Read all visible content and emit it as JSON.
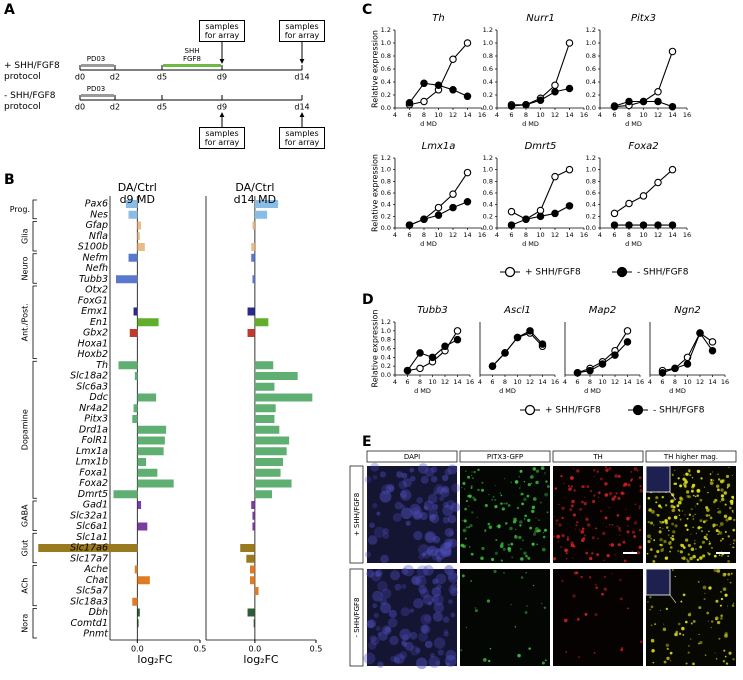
{
  "panel_labels": [
    "A",
    "B",
    "C",
    "D",
    "E"
  ],
  "panel_a": {
    "protocols": [
      {
        "label": "+ SHH/FGF8 protocol",
        "days": [
          "d0",
          "d2",
          "d5",
          "d9",
          "d14"
        ],
        "treatments": [
          {
            "label": "PD03",
            "color": "#9a9a9a"
          },
          {
            "label": "SHH FGF8",
            "color": "#6dbb45"
          }
        ],
        "samples": [
          "samples for array",
          "samples for array"
        ]
      },
      {
        "label": "- SHH/FGF8 protocol",
        "days": [
          "d0",
          "d2",
          "d5",
          "d9",
          "d14"
        ],
        "treatments": [
          {
            "label": "PD03",
            "color": "#9a9a9a"
          }
        ],
        "samples": [
          "samples for array",
          "samples for array"
        ]
      }
    ]
  },
  "chart_data": [
    {
      "type": "barh",
      "groups": [
        {
          "label": "Prog.",
          "categories": [
            "Pax6",
            "Nes"
          ],
          "color": "#89bde6"
        },
        {
          "label": "Glia",
          "categories": [
            "Gfap",
            "Nfla",
            "S100b"
          ],
          "color": "#e8bd84"
        },
        {
          "label": "Neuro",
          "categories": [
            "Nefm",
            "Nefh",
            "Tubb3"
          ],
          "color": "#5b78cf"
        },
        {
          "label": "Ant./Post.",
          "categories": [
            "Otx2",
            "FoxG1",
            "Emx1",
            "En1",
            "Gbx2",
            "Hoxa1",
            "Hoxb2"
          ],
          "colors": [
            "#8c8cd0",
            "#8c8cd0",
            "#2a2a8a",
            "#5fae2e",
            "#c0392b",
            "#c0392b",
            "#c0392b"
          ]
        },
        {
          "label": "Dopamine",
          "categories": [
            "Th",
            "Slc18a2",
            "Slc6a3",
            "Ddc",
            "Nr4a2",
            "Pitx3",
            "Drd1a",
            "FolR1",
            "Lmx1a",
            "Lmx1b",
            "Foxa1",
            "Foxa2",
            "Dmrt5"
          ],
          "color": "#5fae72"
        },
        {
          "label": "GABA",
          "categories": [
            "Gad1",
            "Slc32a1",
            "Slc6a1"
          ],
          "color": "#7a3d9e"
        },
        {
          "label": "Glut",
          "categories": [
            "Slc1a1",
            "Slc17a6",
            "Slc17a7"
          ],
          "color": "#9a7a1e"
        },
        {
          "label": "ACh",
          "categories": [
            "Ache",
            "Chat",
            "Slc5a7",
            "Slc18a3"
          ],
          "color": "#e07b22"
        },
        {
          "label": "Nora",
          "categories": [
            "Dbh",
            "Comtd1",
            "Pnmt"
          ],
          "color": "#2f5c34"
        }
      ],
      "xlabel": "log₂FC",
      "series": [
        {
          "name": "DA/Ctrl d9 MD",
          "xlim": [
            -0.8,
            0.5
          ],
          "xticks": [
            {
              "value": 0,
              "label": "0.0"
            },
            0.5
          ],
          "values": [
            -0.09,
            -0.07,
            0.03,
            0.02,
            0.06,
            -0.07,
            0,
            -0.17,
            0,
            0,
            -0.03,
            0.17,
            -0.06,
            0,
            0,
            -0.15,
            -0.02,
            0,
            0.15,
            -0.03,
            -0.04,
            0.23,
            0.22,
            0.21,
            0.07,
            0.16,
            0.29,
            -0.19,
            0.03,
            0,
            0.08,
            0,
            -0.79,
            0,
            -0.02,
            0.1,
            0,
            -0.04,
            0.02,
            0.01,
            0
          ]
        },
        {
          "name": "DA/Ctrl d14 MD",
          "xlim": [
            -0.4,
            0.5
          ],
          "xticks": [
            {
              "value": 0,
              "label": "0.0"
            },
            0.5
          ],
          "values": [
            0.19,
            0.1,
            -0.02,
            0,
            -0.03,
            -0.03,
            0,
            -0.02,
            0,
            0,
            -0.06,
            0.11,
            -0.06,
            0,
            0,
            0.15,
            0.35,
            0.16,
            0.47,
            0.17,
            0.16,
            0.2,
            0.28,
            0.26,
            0.23,
            0.21,
            0.3,
            0.14,
            -0.03,
            -0.02,
            -0.02,
            0,
            -0.12,
            -0.07,
            -0.04,
            -0.04,
            0.03,
            0,
            -0.06,
            -0.01,
            0
          ]
        }
      ]
    },
    {
      "type": "line",
      "title": "Th",
      "ylabel": "Relative expression",
      "xlabel": "d MD",
      "x": [
        6,
        8,
        10,
        12,
        14
      ],
      "xlim": [
        4,
        16
      ],
      "xticks": [
        4,
        6,
        8,
        10,
        12,
        14,
        16
      ],
      "ylim": [
        0,
        1.2
      ],
      "yticks": [
        {
          "value": 0,
          "label": "0.0"
        },
        0.2,
        0.4,
        0.6,
        0.8,
        {
          "value": 1,
          "label": "1.0"
        },
        1.2
      ],
      "series": [
        {
          "name": "+ SHH/FGF8",
          "marker": "open",
          "color": "#000000",
          "values": [
            0.05,
            0.1,
            0.28,
            0.75,
            1.0
          ]
        },
        {
          "name": "- SHH/FGF8",
          "marker": "filled",
          "color": "#000000",
          "values": [
            0.08,
            0.38,
            0.35,
            0.28,
            0.18
          ]
        }
      ]
    },
    {
      "type": "line",
      "title": "Nurr1",
      "xlabel": "d MD",
      "x": [
        6,
        8,
        10,
        12,
        14
      ],
      "xlim": [
        4,
        16
      ],
      "xticks": [
        4,
        6,
        8,
        10,
        12,
        14,
        16
      ],
      "ylim": [
        0,
        1.2
      ],
      "yticks": [
        {
          "value": 0,
          "label": "0.0"
        },
        0.2,
        0.4,
        0.6,
        0.8,
        {
          "value": 1,
          "label": "1.0"
        },
        1.2
      ],
      "series": [
        {
          "marker": "open",
          "color": "#000000",
          "values": [
            0.05,
            0.05,
            0.15,
            0.35,
            1.0
          ]
        },
        {
          "marker": "filled",
          "color": "#000000",
          "values": [
            0.03,
            0.05,
            0.12,
            0.25,
            0.3
          ]
        }
      ]
    },
    {
      "type": "line",
      "title": "Pitx3",
      "xlabel": "d MD",
      "x": [
        6,
        8,
        10,
        12,
        14
      ],
      "xlim": [
        4,
        16
      ],
      "xticks": [
        4,
        6,
        8,
        10,
        12,
        14,
        16
      ],
      "ylim": [
        0,
        1.2
      ],
      "yticks": [
        {
          "value": 0,
          "label": "0.0"
        },
        0.2,
        0.4,
        0.6,
        0.8,
        {
          "value": 1,
          "label": "1.0"
        },
        1.2
      ],
      "series": [
        {
          "marker": "open",
          "color": "#000000",
          "values": [
            0.02,
            0.04,
            0.1,
            0.25,
            0.87
          ]
        },
        {
          "marker": "filled",
          "color": "#000000",
          "values": [
            0.03,
            0.1,
            0.1,
            0.1,
            0.02
          ]
        }
      ]
    },
    {
      "type": "line",
      "title": "Lmx1a",
      "ylabel": "Relative expression",
      "xlabel": "d MD",
      "x": [
        6,
        8,
        10,
        12,
        14
      ],
      "xlim": [
        4,
        16
      ],
      "xticks": [
        4,
        6,
        8,
        10,
        12,
        14,
        16
      ],
      "ylim": [
        0,
        1.2
      ],
      "yticks": [
        {
          "value": 0,
          "label": "0.0"
        },
        0.2,
        0.4,
        0.6,
        0.8,
        {
          "value": 1,
          "label": "1.0"
        },
        1.2
      ],
      "series": [
        {
          "marker": "open",
          "color": "#000000",
          "values": [
            0.05,
            0.15,
            0.35,
            0.58,
            0.95
          ]
        },
        {
          "marker": "filled",
          "color": "#000000",
          "values": [
            0.05,
            0.15,
            0.22,
            0.35,
            0.45
          ]
        }
      ]
    },
    {
      "type": "line",
      "title": "Dmrt5",
      "xlabel": "d MD",
      "x": [
        6,
        8,
        10,
        12,
        14
      ],
      "xlim": [
        4,
        16
      ],
      "xticks": [
        4,
        6,
        8,
        10,
        12,
        14,
        16
      ],
      "ylim": [
        0,
        1.2
      ],
      "yticks": [
        {
          "value": 0,
          "label": "0.0"
        },
        0.2,
        0.4,
        0.6,
        0.8,
        {
          "value": 1,
          "label": "1.0"
        },
        1.2
      ],
      "series": [
        {
          "marker": "open",
          "color": "#000000",
          "values": [
            0.28,
            0.15,
            0.3,
            0.88,
            1.0
          ]
        },
        {
          "marker": "filled",
          "color": "#000000",
          "values": [
            0.05,
            0.15,
            0.2,
            0.25,
            0.38
          ]
        }
      ]
    },
    {
      "type": "line",
      "title": "Foxa2",
      "xlabel": "d MD",
      "x": [
        6,
        8,
        10,
        12,
        14
      ],
      "xlim": [
        4,
        16
      ],
      "xticks": [
        4,
        6,
        8,
        10,
        12,
        14,
        16
      ],
      "ylim": [
        0,
        1.2
      ],
      "yticks": [
        {
          "value": 0,
          "label": "0.0"
        },
        0.2,
        0.4,
        0.6,
        0.8,
        {
          "value": 1,
          "label": "1.0"
        },
        1.2
      ],
      "series": [
        {
          "marker": "open",
          "color": "#000000",
          "values": [
            0.25,
            0.42,
            0.55,
            0.78,
            1.0
          ]
        },
        {
          "marker": "filled",
          "color": "#000000",
          "values": [
            0.05,
            0.05,
            0.05,
            0.05,
            0.05
          ]
        }
      ]
    },
    {
      "type": "line",
      "title": "Tubb3",
      "ylabel": "Relative expression",
      "xlabel": "d MD",
      "x": [
        6,
        8,
        10,
        12,
        14
      ],
      "xlim": [
        4,
        16
      ],
      "xticks": [
        4,
        6,
        8,
        10,
        12,
        14,
        16
      ],
      "ylim": [
        0,
        1.2
      ],
      "yticks": [
        {
          "value": 0,
          "label": "0.0"
        },
        0.2,
        0.4,
        0.6,
        0.8,
        {
          "value": 1,
          "label": "1.0"
        },
        1.2
      ],
      "series": [
        {
          "name": "+ SHH/FGF8",
          "marker": "open",
          "color": "#000000",
          "values": [
            0.1,
            0.15,
            0.3,
            0.55,
            1.0
          ]
        },
        {
          "name": "- SHH/FGF8",
          "marker": "filled",
          "color": "#000000",
          "values": [
            0.1,
            0.5,
            0.4,
            0.65,
            0.8
          ]
        }
      ]
    },
    {
      "type": "line",
      "title": "Ascl1",
      "xlabel": "d MD",
      "x": [
        6,
        8,
        10,
        12,
        14
      ],
      "xlim": [
        4,
        16
      ],
      "xticks": [
        4,
        6,
        8,
        10,
        12,
        14,
        16
      ],
      "ylim": [
        0,
        1.2
      ],
      "series": [
        {
          "marker": "open",
          "color": "#000000",
          "values": [
            0.2,
            0.5,
            0.85,
            0.95,
            0.65
          ]
        },
        {
          "marker": "filled",
          "color": "#000000",
          "values": [
            0.2,
            0.5,
            0.85,
            1.0,
            0.7
          ]
        }
      ]
    },
    {
      "type": "line",
      "title": "Map2",
      "xlabel": "d MD",
      "x": [
        6,
        8,
        10,
        12,
        14
      ],
      "xlim": [
        4,
        16
      ],
      "xticks": [
        4,
        6,
        8,
        10,
        12,
        14,
        16
      ],
      "ylim": [
        0,
        1.2
      ],
      "series": [
        {
          "marker": "open",
          "color": "#000000",
          "values": [
            0.05,
            0.15,
            0.3,
            0.55,
            1.0
          ]
        },
        {
          "marker": "filled",
          "color": "#000000",
          "values": [
            0.05,
            0.1,
            0.25,
            0.45,
            0.75
          ]
        }
      ]
    },
    {
      "type": "line",
      "title": "Ngn2",
      "xlabel": "d MD",
      "x": [
        6,
        8,
        10,
        12,
        14
      ],
      "xlim": [
        4,
        16
      ],
      "xticks": [
        4,
        6,
        8,
        10,
        12,
        14,
        16
      ],
      "ylim": [
        0,
        1.2
      ],
      "series": [
        {
          "marker": "open",
          "color": "#000000",
          "values": [
            0.1,
            0.15,
            0.4,
            0.95,
            0.75
          ]
        },
        {
          "marker": "filled",
          "color": "#000000",
          "values": [
            0.05,
            0.15,
            0.25,
            0.95,
            0.55
          ]
        }
      ]
    }
  ],
  "panel_e": {
    "columns": [
      "DAPI",
      "PITX3-GFP",
      "TH",
      "TH higher mag."
    ],
    "rows": [
      "+ SHH/FGF8",
      "- SHH/FGF8"
    ]
  }
}
